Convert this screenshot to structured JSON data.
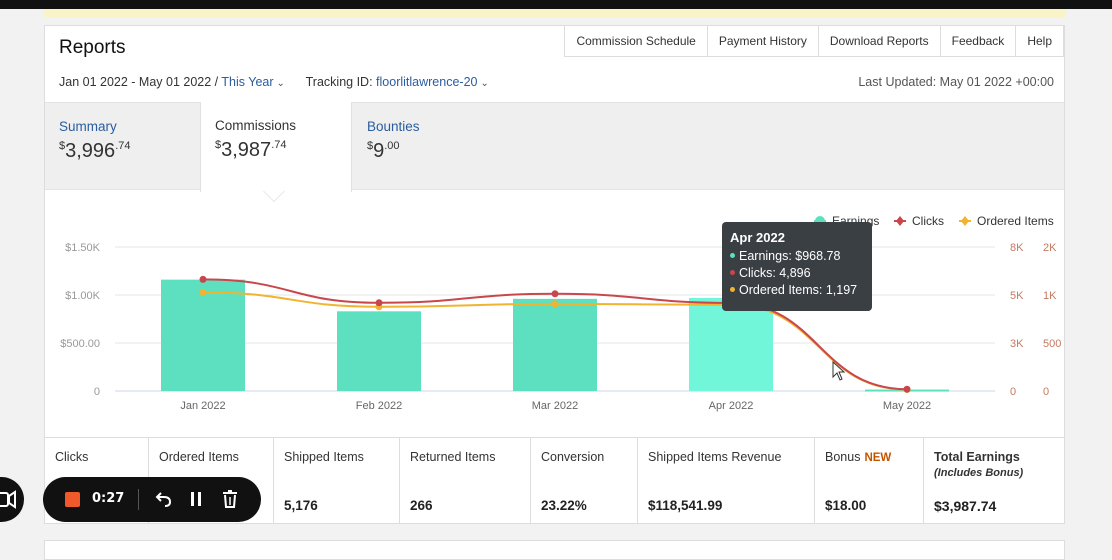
{
  "header": {
    "title": "Reports",
    "top_tabs": [
      "Commission Schedule",
      "Payment History",
      "Download Reports",
      "Feedback",
      "Help"
    ],
    "date_range": "Jan 01 2022 - May 01 2022 /",
    "date_preset": "This Year",
    "tracking_label": "Tracking ID:",
    "tracking_id": "floorlitlawrence-20",
    "last_updated": "Last Updated: May 01 2022 +00:00"
  },
  "summary_tabs": [
    {
      "label": "Summary",
      "currency": "$",
      "whole": "3,996",
      "cents": ".74"
    },
    {
      "label": "Commissions",
      "currency": "$",
      "whole": "3,987",
      "cents": ".74"
    },
    {
      "label": "Bounties",
      "currency": "$",
      "whole": "9",
      "cents": ".00"
    }
  ],
  "chart_data": {
    "type": "bar",
    "categories": [
      "Jan 2022",
      "Feb 2022",
      "Mar 2022",
      "Apr 2022",
      "May 2022"
    ],
    "series": [
      {
        "name": "Earnings",
        "type": "bar",
        "axis": "left",
        "values": [
          1160,
          830,
          960,
          968.78,
          15
        ]
      },
      {
        "name": "Clicks",
        "type": "line",
        "axis": "right1",
        "values": [
          6200,
          4900,
          5400,
          4896,
          100
        ]
      },
      {
        "name": "Ordered Items",
        "type": "line",
        "axis": "right2",
        "values": [
          1370,
          1170,
          1210,
          1197,
          20
        ]
      }
    ],
    "y_left_ticks": [
      "0",
      "$500.00",
      "$1.00K",
      "$1.50K"
    ],
    "y_right1_ticks": [
      "0",
      "3K",
      "5K",
      "8K"
    ],
    "y_right2_ticks": [
      "0",
      "500",
      "1K",
      "2K"
    ],
    "ylim_left": [
      0,
      1500
    ],
    "ylim_right1": [
      0,
      8000
    ],
    "ylim_right2": [
      0,
      2000
    ],
    "legend": [
      "Earnings",
      "Clicks",
      "Ordered Items"
    ],
    "legend_position": "top-right"
  },
  "tooltip": {
    "title": "Apr 2022",
    "earnings": "Earnings: $968.78",
    "clicks": "Clicks: 4,896",
    "ordered": "Ordered Items: 1,197"
  },
  "metrics": [
    {
      "label": "Clicks",
      "value": ""
    },
    {
      "label": "Ordered Items",
      "value": ""
    },
    {
      "label": "Shipped Items",
      "value": "5,176"
    },
    {
      "label": "Returned Items",
      "value": "266"
    },
    {
      "label": "Conversion",
      "value": "23.22%"
    },
    {
      "label": "Shipped Items Revenue",
      "value": "$118,541.99"
    },
    {
      "label": "Bonus",
      "badge": "NEW",
      "value": "$18.00"
    },
    {
      "label": "Total Earnings",
      "sub": "(Includes Bonus)",
      "value": "$3,987.74"
    }
  ],
  "recorder": {
    "time": "0:27"
  },
  "colors": {
    "earnings": "#5ce0c0",
    "earnings_hover": "#72f6da",
    "clicks": "#c9474c",
    "ordered": "#f0b430",
    "link": "#2a5d9f",
    "new_badge": "#c45500",
    "stop": "#f05a2b"
  }
}
